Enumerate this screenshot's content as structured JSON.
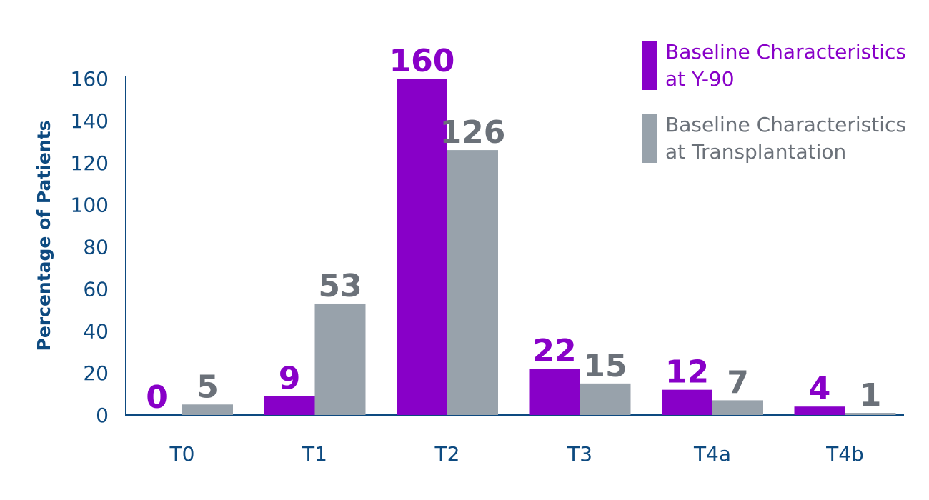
{
  "chart_data": {
    "type": "bar",
    "title": "",
    "xlabel": "",
    "ylabel": "Percentage of Patients",
    "ylim": [
      0,
      160
    ],
    "yticks": [
      0,
      20,
      40,
      60,
      80,
      100,
      120,
      140,
      160
    ],
    "grid": false,
    "legend_placement": "top-right",
    "categories": [
      "T0",
      "T1",
      "T2",
      "T3",
      "T4a",
      "T4b"
    ],
    "series": [
      {
        "name": "Baseline Characteristics at Y-90",
        "name_lines": [
          "Baseline Characteristics",
          "at Y-90"
        ],
        "color": "#8800c8",
        "label_color": "#8800c8",
        "values": [
          0,
          9,
          160,
          22,
          12,
          4
        ]
      },
      {
        "name": "Baseline Characteristics at Transplantation",
        "name_lines": [
          "Baseline Characteristics",
          "at Transplantation"
        ],
        "color": "#98a2ab",
        "label_color": "#6b7179",
        "values": [
          5,
          53,
          126,
          15,
          7,
          1
        ]
      }
    ],
    "axis_color": "#0d4a80"
  }
}
